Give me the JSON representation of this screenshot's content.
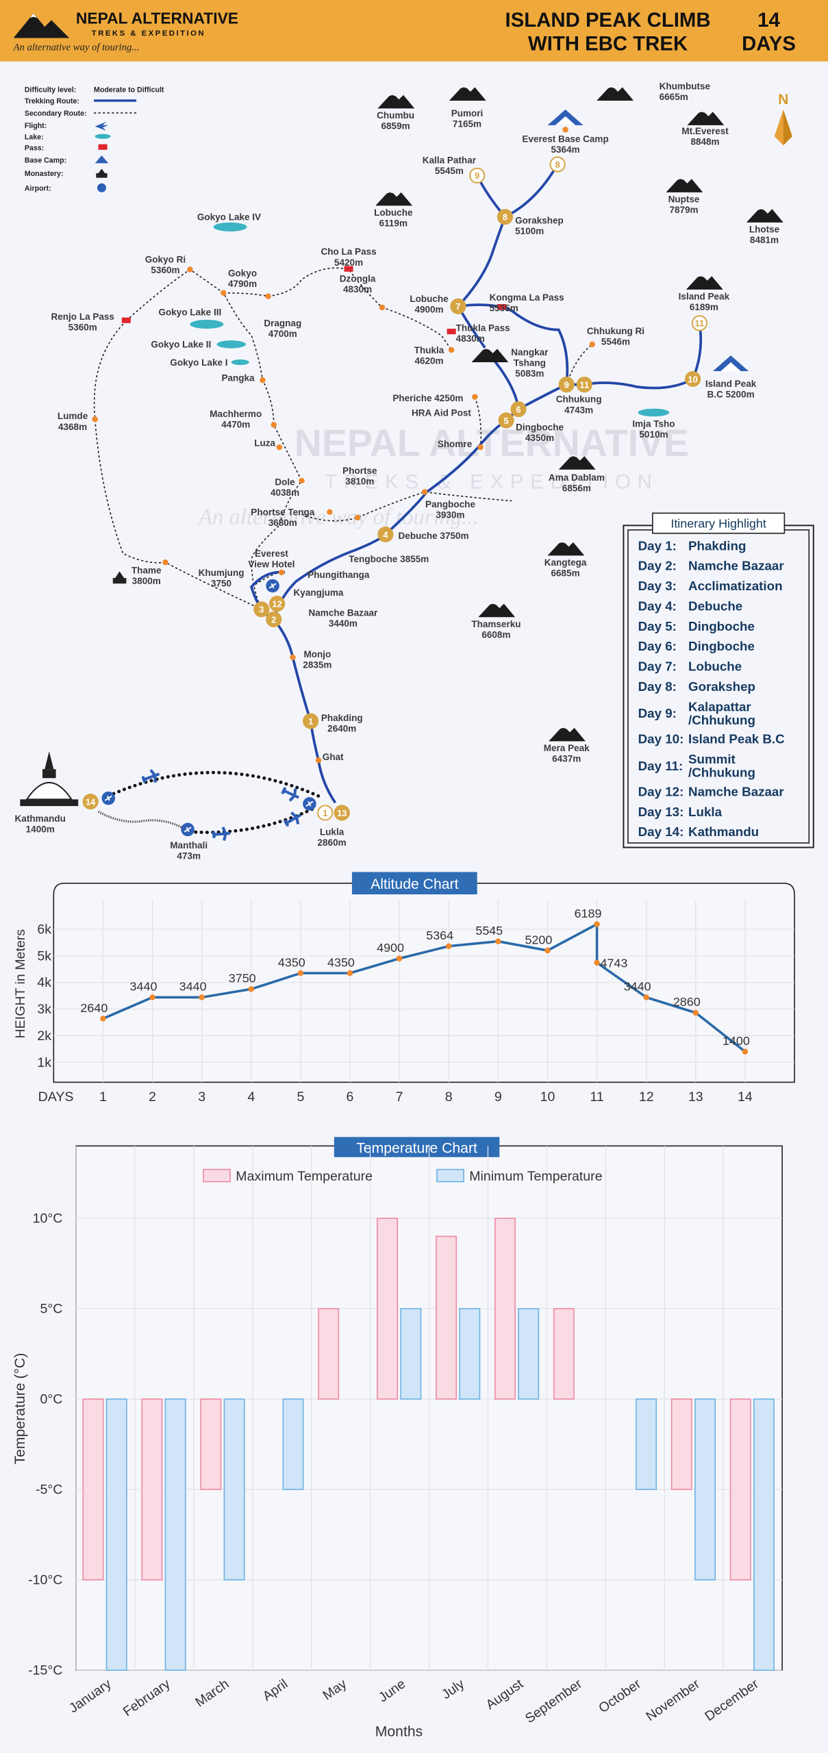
{
  "header": {
    "brand": "NEPAL ALTERNATIVE",
    "brand_sub": "TREKS & EXPEDITION",
    "tagline": "An alternative way of touring...",
    "title_lines": [
      "ISLAND PEAK CLIMB",
      "WITH EBC TREK"
    ],
    "days_lines": [
      "14",
      "DAYS"
    ]
  },
  "legend": [
    {
      "label": "Difficulty level:",
      "value": "Moderate to Difficult"
    },
    {
      "label": "Trekking Route:"
    },
    {
      "label": "Secondary Route:"
    },
    {
      "label": "Flight:"
    },
    {
      "label": "Lake:"
    },
    {
      "label": "Pass:"
    },
    {
      "label": "Base Camp:"
    },
    {
      "label": "Monastery:"
    },
    {
      "label": "Airport:"
    }
  ],
  "watermark": {
    "brand": "NEPAL ALTERNATIVE",
    "sub": "TREKS & EXPEDITION",
    "tagline": "An alternative way of touring..."
  },
  "map": {
    "compass": "N",
    "places": [
      {
        "lines": [
          "Chumbu",
          "6859m"
        ]
      },
      {
        "lines": [
          "Pumori",
          "7165m"
        ]
      },
      {
        "lines": [
          "Khumbutse",
          "6665m"
        ]
      },
      {
        "lines": [
          "Everest Base Camp",
          "5364m"
        ]
      },
      {
        "lines": [
          "Mt.Everest",
          "8848m"
        ]
      },
      {
        "lines": [
          "Kalla Pathar",
          "5545m"
        ]
      },
      {
        "lines": [
          "Lobuche",
          "6119m"
        ]
      },
      {
        "lines": [
          "Nuptse",
          "7879m"
        ]
      },
      {
        "lines": [
          "Lhotse",
          "8481m"
        ]
      },
      {
        "lines": [
          "Gokyo Lake IV"
        ]
      },
      {
        "lines": [
          "Gorakshep",
          "5100m"
        ]
      },
      {
        "lines": [
          "Cho La Pass",
          "5420m"
        ]
      },
      {
        "lines": [
          "Gokyo Ri",
          "5360m"
        ]
      },
      {
        "lines": [
          "Gokyo",
          "4790m"
        ]
      },
      {
        "lines": [
          "Island Peak",
          "6189m"
        ]
      },
      {
        "lines": [
          "Renjo La Pass",
          "5360m"
        ]
      },
      {
        "lines": [
          "Gokyo Lake III"
        ]
      },
      {
        "lines": [
          "Dragnag",
          "4700m"
        ]
      },
      {
        "lines": [
          "Dzongla",
          "4830m"
        ]
      },
      {
        "lines": [
          "Lobuche",
          "4900m"
        ]
      },
      {
        "lines": [
          "Kongma La Pass",
          "5535m"
        ]
      },
      {
        "lines": [
          "Thukla Pass",
          "4830m"
        ]
      },
      {
        "lines": [
          "Chhukung Ri",
          "5546m"
        ]
      },
      {
        "lines": [
          "Gokyo Lake II"
        ]
      },
      {
        "lines": [
          "Gokyo Lake I"
        ]
      },
      {
        "lines": [
          "Pangka"
        ]
      },
      {
        "lines": [
          "Thukla",
          "4620m"
        ]
      },
      {
        "lines": [
          "Nangkar",
          "Tshang",
          "5083m"
        ]
      },
      {
        "lines": [
          "Island Peak",
          "B.C 5200m"
        ]
      },
      {
        "lines": [
          "Chhukung",
          "4743m"
        ]
      },
      {
        "lines": [
          "Machhermo",
          "4470m"
        ]
      },
      {
        "lines": [
          "Lumde",
          "4368m"
        ]
      },
      {
        "lines": [
          "Pheriche 4250m"
        ]
      },
      {
        "lines": [
          "HRA Aid Post"
        ]
      },
      {
        "lines": [
          "Imja Tsho",
          "5010m"
        ]
      },
      {
        "lines": [
          "Dingboche",
          "4350m"
        ]
      },
      {
        "lines": [
          "Luza"
        ]
      },
      {
        "lines": [
          "Shomre"
        ]
      },
      {
        "lines": [
          "Ama Dablam",
          "6856m"
        ]
      },
      {
        "lines": [
          "Dole",
          "4038m"
        ]
      },
      {
        "lines": [
          "Phortse",
          "3810m"
        ]
      },
      {
        "lines": [
          "Phortse Tenga",
          "3680m"
        ]
      },
      {
        "lines": [
          "Pangboche",
          "3930m"
        ]
      },
      {
        "lines": [
          "Debuche 3750m"
        ]
      },
      {
        "lines": [
          "Everest",
          "View Hotel"
        ]
      },
      {
        "lines": [
          "Thame",
          "3800m"
        ]
      },
      {
        "lines": [
          "Tengboche 3855m"
        ]
      },
      {
        "lines": [
          "Kangtega",
          "6685m"
        ]
      },
      {
        "lines": [
          "Phungithanga"
        ]
      },
      {
        "lines": [
          "Khumjung",
          "3750"
        ]
      },
      {
        "lines": [
          "Kyangjuma"
        ]
      },
      {
        "lines": [
          "Namche Bazaar",
          "3440m"
        ]
      },
      {
        "lines": [
          "Thamserku",
          "6608m"
        ]
      },
      {
        "lines": [
          "Monjo",
          "2835m"
        ]
      },
      {
        "lines": [
          "Phakding",
          "2640m"
        ]
      },
      {
        "lines": [
          "Ghat"
        ]
      },
      {
        "lines": [
          "Mera Peak",
          "6437m"
        ]
      },
      {
        "lines": [
          "Kathmandu",
          "1400m"
        ]
      },
      {
        "lines": [
          "Lukla",
          "2860m"
        ]
      },
      {
        "lines": [
          "Manthali",
          "473m"
        ]
      }
    ],
    "stops": [
      "9",
      "8",
      "8",
      "7",
      "11",
      "9",
      "11",
      "10",
      "6",
      "5",
      "4",
      "3",
      "12",
      "2",
      "1",
      "14",
      "1",
      "13"
    ]
  },
  "itinerary": {
    "title": "Itinerary Highlight",
    "days": [
      {
        "day": "Day 1:",
        "place": [
          "Phakding"
        ]
      },
      {
        "day": "Day 2:",
        "place": [
          "Namche Bazaar"
        ]
      },
      {
        "day": "Day 3:",
        "place": [
          "Acclimatization"
        ]
      },
      {
        "day": "Day 4:",
        "place": [
          "Debuche"
        ]
      },
      {
        "day": "Day 5:",
        "place": [
          "Dingboche"
        ]
      },
      {
        "day": "Day 6:",
        "place": [
          "Dingboche"
        ]
      },
      {
        "day": "Day 7:",
        "place": [
          "Lobuche"
        ]
      },
      {
        "day": "Day 8:",
        "place": [
          "Gorakshep"
        ]
      },
      {
        "day": "Day 9:",
        "place": [
          "Kalapattar",
          "/Chhukung"
        ]
      },
      {
        "day": "Day 10:",
        "place": [
          "Island Peak B.C"
        ]
      },
      {
        "day": "Day 11:",
        "place": [
          "Summit",
          "/Chhukung"
        ]
      },
      {
        "day": "Day 12:",
        "place": [
          "Namche Bazaar"
        ]
      },
      {
        "day": "Day 13:",
        "place": [
          "Lukla"
        ]
      },
      {
        "day": "Day 14:",
        "place": [
          "Kathmandu"
        ]
      }
    ]
  },
  "chart_data": [
    {
      "type": "line",
      "title": "Altitude Chart",
      "x_label": "DAYS",
      "y_label": "HEIGHT in Meters",
      "x": [
        1,
        2,
        3,
        4,
        5,
        6,
        7,
        8,
        9,
        10,
        11,
        11,
        12,
        13,
        14
      ],
      "values": [
        2640,
        3440,
        3440,
        3750,
        4350,
        4350,
        4900,
        5364,
        5545,
        5200,
        6189,
        4743,
        3440,
        2860,
        1400
      ],
      "color": "#2a6aa8",
      "marker_color": "#f0892c",
      "xlim": [
        0,
        15
      ],
      "xticks": [
        1,
        2,
        3,
        4,
        5,
        6,
        7,
        8,
        9,
        10,
        11,
        12,
        13,
        14
      ],
      "ylim": [
        250,
        7100
      ],
      "yticks": [
        {
          "value": 1000,
          "label": "1k"
        },
        {
          "value": 2000,
          "label": "2k"
        },
        {
          "value": 3000,
          "label": "3k"
        },
        {
          "value": 4000,
          "label": "4k"
        },
        {
          "value": 5000,
          "label": "5k"
        },
        {
          "value": 6000,
          "label": "6k"
        }
      ],
      "grid": true
    },
    {
      "type": "bar",
      "title": "Temperature Chart",
      "x_label": "Months",
      "y_label": "Temperature (°C)",
      "categories": [
        "January",
        "February",
        "March",
        "April",
        "May",
        "June",
        "July",
        "August",
        "September",
        "October",
        "November",
        "December"
      ],
      "series": [
        {
          "name": "Maximum Temperature",
          "color": "#ee8aa5",
          "fill": "#fadbe3",
          "values": [
            -10,
            -10,
            -5,
            0,
            5,
            10,
            9,
            10,
            5,
            0,
            -5,
            -10
          ]
        },
        {
          "name": "Minimum Temperature",
          "color": "#6fb2e2",
          "fill": "#d0e5f7",
          "values": [
            -15,
            -15,
            -10,
            -5,
            0,
            5,
            5,
            5,
            0,
            -5,
            -10,
            -15
          ]
        }
      ],
      "ylim": [
        -15,
        14
      ],
      "yticks": [
        {
          "value": -15,
          "label": "-15°C"
        },
        {
          "value": -10,
          "label": "-10°C"
        },
        {
          "value": -5,
          "label": "-5°C"
        },
        {
          "value": 0,
          "label": "0°C"
        },
        {
          "value": 5,
          "label": "5°C"
        },
        {
          "value": 10,
          "label": "10°C"
        }
      ],
      "grid": true
    }
  ]
}
